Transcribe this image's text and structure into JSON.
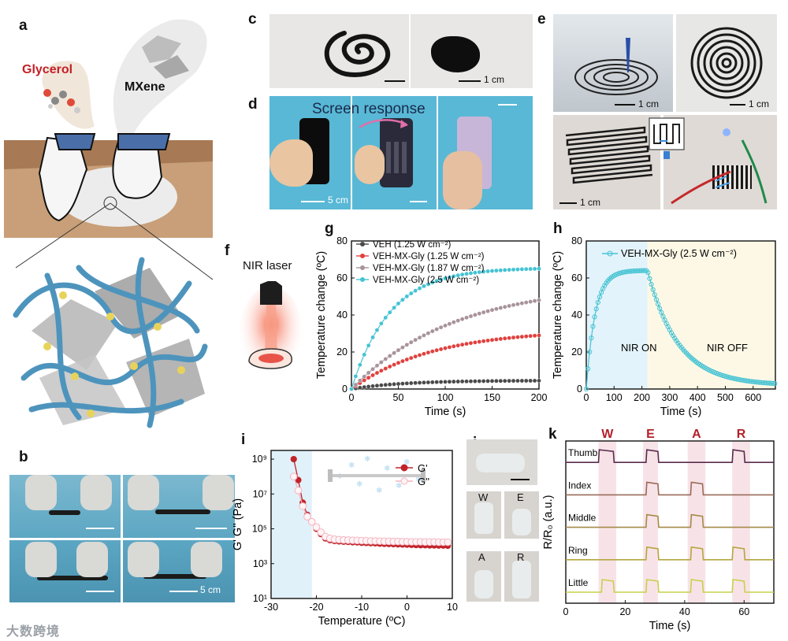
{
  "panels": {
    "a": {
      "label": "a",
      "glycerol": "Glycerol",
      "mxene": "MXene"
    },
    "b": {
      "label": "b",
      "scale": "5 cm"
    },
    "c": {
      "label": "c",
      "scale": "1 cm"
    },
    "d": {
      "label": "d",
      "caption": "Screen response",
      "scale": "5 cm"
    },
    "e": {
      "label": "e",
      "scale1": "1 cm",
      "scale2": "1 cm",
      "scale3": "1 cm"
    },
    "f": {
      "label": "f",
      "title": "NIR laser"
    },
    "g": {
      "label": "g"
    },
    "h": {
      "label": "h",
      "on": "NIR ON",
      "off": "NIR OFF"
    },
    "i": {
      "label": "i"
    },
    "j": {
      "label": "j",
      "letters": [
        "W",
        "E",
        "A",
        "R"
      ]
    },
    "k": {
      "label": "k"
    }
  },
  "watermark": "大数跨境",
  "colors": {
    "veh": "#4a4a4a",
    "red": "#e0413e",
    "gray": "#a8939a",
    "cyan": "#45c3d3",
    "darkred": "#c0242a",
    "pink": "#f3b3bf"
  },
  "chart_data": [
    {
      "id": "g",
      "type": "line",
      "xlabel": "Time (s)",
      "ylabel": "Temperature change (ºC)",
      "xlim": [
        0,
        220
      ],
      "ylim": [
        0,
        80
      ],
      "xticks": [
        "0",
        "50",
        "100",
        "150",
        "200"
      ],
      "yticks": [
        "0",
        "20",
        "40",
        "60",
        "80"
      ],
      "legend_placement": "top-left",
      "series": [
        {
          "name": "VEH (1.25 W cm⁻²)",
          "color": "#4a4a4a",
          "final": 4.5,
          "tau": 60
        },
        {
          "name": "VEH-MX-Gly (1.25 W cm⁻²)",
          "color": "#e0413e",
          "final": 29,
          "tau": 95
        },
        {
          "name": "VEH-MX-Gly (1.87 W cm⁻²)",
          "color": "#a8939a",
          "final": 48,
          "tau": 120
        },
        {
          "name": "VEH-MX-Gly (2.5 W cm⁻²)",
          "color": "#45c3d3",
          "final": 65,
          "tau": 45
        }
      ]
    },
    {
      "id": "h",
      "type": "line",
      "xlabel": "Time (s)",
      "ylabel": "Temperature change (ºC)",
      "xlim": [
        0,
        680
      ],
      "ylim": [
        0,
        80
      ],
      "xticks": [
        "0",
        "100",
        "200",
        "300",
        "400",
        "500",
        "600"
      ],
      "yticks": [
        "0",
        "20",
        "40",
        "60",
        "80"
      ],
      "legend_placement": "top",
      "series": [
        {
          "name": "VEH-MX-Gly (2.5 W cm⁻²)",
          "color": "#45c3d3",
          "peak": 64,
          "t_on": 220,
          "tau_decay": 110
        }
      ]
    },
    {
      "id": "i",
      "type": "scatter",
      "xlabel": "Temperature (ºC)",
      "ylabel": "G' G'' (Pa)",
      "xlim": [
        -30,
        10
      ],
      "ylim_log10": [
        1,
        9.5
      ],
      "yscale": "log",
      "xticks": [
        "-30",
        "-20",
        "-10",
        "0",
        "10"
      ],
      "yticks": [
        "10¹",
        "10³",
        "10⁵",
        "10⁷",
        "10⁹"
      ],
      "legend_placement": "top-right",
      "series": [
        {
          "name": "G'",
          "color": "#c0242a",
          "x": [
            -25,
            -24,
            -23,
            -22,
            -21,
            -20,
            -19,
            -18,
            -17,
            -16,
            -15,
            -14,
            -13,
            -12,
            -11,
            -10,
            -9,
            -8,
            -7,
            -6,
            -5,
            -4,
            -3,
            -2,
            -1,
            0,
            1,
            2,
            3,
            4,
            5,
            6,
            7,
            8,
            9
          ],
          "log10": [
            9.0,
            7.8,
            6.5,
            5.8,
            5.4,
            5.0,
            4.7,
            4.45,
            4.35,
            4.3,
            4.28,
            4.26,
            4.25,
            4.23,
            4.22,
            4.2,
            4.19,
            4.18,
            4.17,
            4.15,
            4.14,
            4.13,
            4.12,
            4.11,
            4.1,
            4.09,
            4.08,
            4.07,
            4.06,
            4.06,
            4.05,
            4.05,
            4.04,
            4.04,
            4.03
          ]
        },
        {
          "name": "G''",
          "color": "#f3b3bf",
          "x": [
            -25,
            -24,
            -23,
            -22,
            -21,
            -20,
            -19,
            -18,
            -17,
            -16,
            -15,
            -14,
            -13,
            -12,
            -11,
            -10,
            -9,
            -8,
            -7,
            -6,
            -5,
            -4,
            -3,
            -2,
            -1,
            0,
            1,
            2,
            3,
            4,
            5,
            6,
            7,
            8,
            9
          ],
          "log10": [
            8.0,
            7.2,
            6.3,
            5.7,
            5.4,
            5.1,
            4.8,
            4.55,
            4.45,
            4.4,
            4.38,
            4.36,
            4.35,
            4.34,
            4.33,
            4.32,
            4.31,
            4.3,
            4.3,
            4.29,
            4.28,
            4.28,
            4.27,
            4.27,
            4.26,
            4.26,
            4.25,
            4.25,
            4.25,
            4.24,
            4.24,
            4.24,
            4.23,
            4.23,
            4.23
          ]
        }
      ]
    },
    {
      "id": "k",
      "type": "line",
      "xlabel": "Time (s)",
      "ylabel": "R/R₀ (a.u.)",
      "xlim": [
        0,
        70
      ],
      "xticks": [
        "0",
        "20",
        "40",
        "60"
      ],
      "letters": [
        {
          "text": "W",
          "start": 11,
          "end": 17
        },
        {
          "text": "E",
          "start": 26,
          "end": 31
        },
        {
          "text": "A",
          "start": 41,
          "end": 47
        },
        {
          "text": "R",
          "start": 56,
          "end": 62
        }
      ],
      "series": [
        {
          "name": "Thumb",
          "color": "#5a2b4e",
          "pulses": [
            [
              11,
              16
            ],
            [
              27,
              31
            ],
            [
              56,
              60
            ]
          ]
        },
        {
          "name": "Index",
          "color": "#9a6b5a",
          "pulses": [
            [
              27,
              31
            ],
            [
              42,
              46
            ]
          ]
        },
        {
          "name": "Middle",
          "color": "#a58a4a",
          "pulses": [
            [
              27,
              31
            ],
            [
              42,
              46
            ]
          ]
        },
        {
          "name": "Ring",
          "color": "#b6a63f",
          "pulses": [
            [
              27,
              31
            ],
            [
              42,
              46
            ],
            [
              56,
              60
            ]
          ]
        },
        {
          "name": "Little",
          "color": "#c8d04a",
          "pulses": [
            [
              12,
              16
            ],
            [
              27,
              31
            ],
            [
              42,
              46
            ],
            [
              56,
              60
            ]
          ]
        }
      ]
    }
  ]
}
